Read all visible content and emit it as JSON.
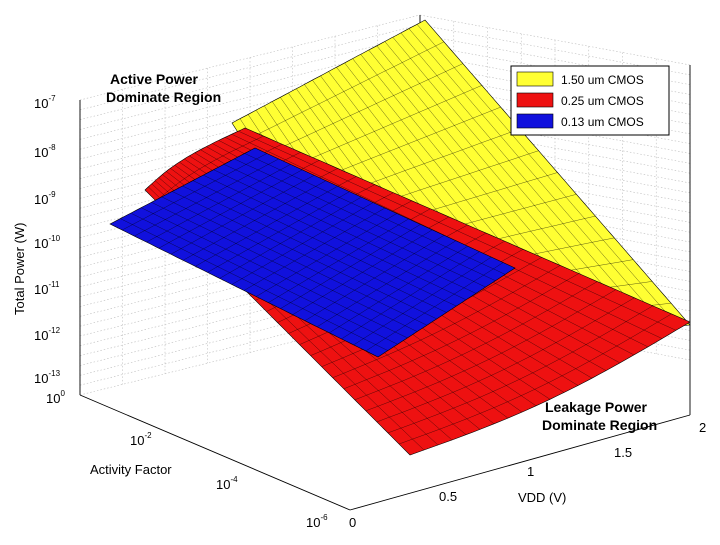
{
  "chart_data": {
    "type": "surface-3d",
    "title": "",
    "annotations": {
      "active": [
        "Active Power",
        "Dominate Region"
      ],
      "leakage": [
        "Leakage Power",
        "Dominate Region"
      ]
    },
    "axes": {
      "z": {
        "label": "Total Power (W)",
        "scale": "log",
        "range": [
          1e-13,
          1e-07
        ],
        "ticks": [
          {
            "base": "10",
            "exp": "-7"
          },
          {
            "base": "10",
            "exp": "-8"
          },
          {
            "base": "10",
            "exp": "-9"
          },
          {
            "base": "10",
            "exp": "-10"
          },
          {
            "base": "10",
            "exp": "-11"
          },
          {
            "base": "10",
            "exp": "-12"
          },
          {
            "base": "10",
            "exp": "-13"
          }
        ]
      },
      "activity": {
        "label": "Activity Factor",
        "scale": "log",
        "range": [
          1e-06,
          1
        ],
        "ticks": [
          {
            "base": "10",
            "exp": "0"
          },
          {
            "base": "10",
            "exp": "-2"
          },
          {
            "base": "10",
            "exp": "-4"
          },
          {
            "base": "10",
            "exp": "-6"
          }
        ]
      },
      "vdd": {
        "label": "VDD (V)",
        "range": [
          0,
          2
        ],
        "ticks": [
          "0",
          "0.5",
          "1",
          "1.5",
          "2"
        ]
      }
    },
    "legend": {
      "placement": "top-right",
      "entries": [
        {
          "name": "1.50 um CMOS",
          "color": "#ffff33"
        },
        {
          "name": "0.25 um CMOS",
          "color": "#ee1111"
        },
        {
          "name": "0.13 um CMOS",
          "color": "#1111dd"
        }
      ]
    },
    "series": [
      {
        "name": "1.50 um CMOS",
        "color": "#ffff33",
        "vdd_range": [
          0.7,
          2.0
        ],
        "log10_power_at_max_activity": -8.0,
        "log10_leakage_at_vdd_max": -12.3
      },
      {
        "name": "0.25 um CMOS",
        "color": "#ee1111",
        "vdd_range": [
          0.2,
          2.0
        ],
        "log10_power_at_max_activity": -8.5,
        "log10_leakage_at_vdd_max": -11.8
      },
      {
        "name": "0.13 um CMOS",
        "color": "#1111dd",
        "vdd_range": [
          0.2,
          1.2
        ],
        "log10_power_at_max_activity": -9.8,
        "log10_leakage_at_vdd_max": -11.3
      }
    ],
    "grid": true
  }
}
